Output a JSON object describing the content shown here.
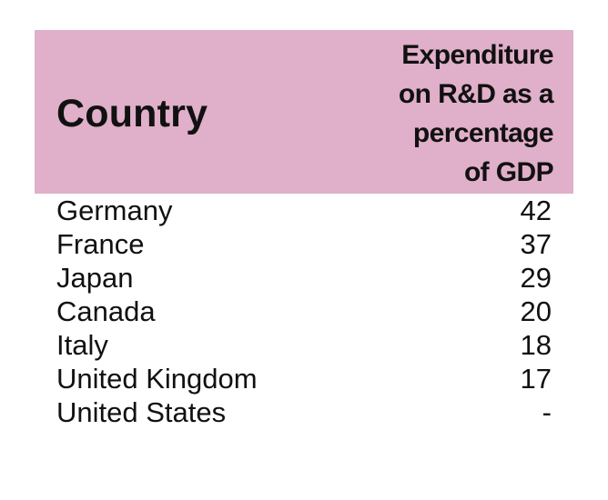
{
  "table": {
    "header": {
      "country_label": "Country",
      "value_label_lines": [
        "Expenditure",
        "on R&D as a",
        "percentage",
        "of GDP"
      ]
    },
    "rows": [
      {
        "country": "Germany",
        "value": "42"
      },
      {
        "country": "France",
        "value": "37"
      },
      {
        "country": "Japan",
        "value": "29"
      },
      {
        "country": "Canada",
        "value": "20"
      },
      {
        "country": "Italy",
        "value": "18"
      },
      {
        "country": "United Kingdom",
        "value": "17"
      },
      {
        "country": "United States",
        "value": "-"
      }
    ]
  },
  "colors": {
    "header_background": "#e0afc9",
    "text": "#111111"
  }
}
